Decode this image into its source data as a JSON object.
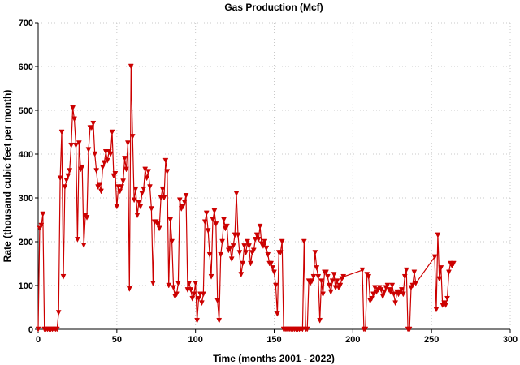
{
  "chart_data": {
    "type": "line",
    "title": "Gas Production (Mcf)",
    "xlabel": "Time (months 2001 - 2022)",
    "ylabel": "Rate (thousand cubic feet per month)",
    "xlim": [
      0,
      300
    ],
    "ylim": [
      0,
      700
    ],
    "xticks": [
      0,
      50,
      100,
      150,
      200,
      250,
      300
    ],
    "yticks": [
      0,
      100,
      200,
      300,
      400,
      500,
      600,
      700
    ],
    "grid": true,
    "line_color": "#cc0000",
    "marker": "triangle-down",
    "series": [
      {
        "name": "Gas Production",
        "x": [
          0,
          1,
          2,
          3,
          4,
          5,
          6,
          7,
          8,
          9,
          10,
          11,
          12,
          13,
          14,
          15,
          16,
          17,
          18,
          19,
          20,
          21,
          22,
          23,
          24,
          25,
          26,
          27,
          28,
          29,
          30,
          31,
          32,
          33,
          34,
          35,
          36,
          37,
          38,
          39,
          40,
          41,
          42,
          43,
          44,
          45,
          46,
          47,
          48,
          49,
          50,
          51,
          52,
          53,
          54,
          55,
          56,
          57,
          58,
          59,
          60,
          61,
          62,
          63,
          64,
          65,
          66,
          67,
          68,
          69,
          70,
          71,
          72,
          73,
          74,
          75,
          76,
          77,
          78,
          79,
          80,
          81,
          82,
          83,
          84,
          85,
          86,
          87,
          88,
          89,
          90,
          91,
          92,
          93,
          94,
          95,
          96,
          97,
          98,
          99,
          100,
          101,
          102,
          103,
          104,
          105,
          106,
          107,
          108,
          109,
          110,
          111,
          112,
          113,
          114,
          115,
          116,
          117,
          118,
          119,
          120,
          121,
          122,
          123,
          124,
          125,
          126,
          127,
          128,
          129,
          130,
          131,
          132,
          133,
          134,
          135,
          136,
          137,
          138,
          139,
          140,
          141,
          142,
          143,
          144,
          145,
          146,
          147,
          148,
          149,
          150,
          151,
          152,
          153,
          154,
          155,
          156,
          157,
          158,
          159,
          160,
          161,
          162,
          163,
          164,
          165,
          166,
          167,
          168,
          169,
          170,
          171,
          172,
          173,
          174,
          175,
          176,
          177,
          178,
          179,
          180,
          181,
          182,
          183,
          184,
          185,
          186,
          187,
          188,
          189,
          190,
          191,
          192,
          193,
          194,
          206,
          207,
          208,
          209,
          210,
          211,
          212,
          213,
          214,
          215,
          216,
          217,
          218,
          219,
          220,
          221,
          222,
          223,
          224,
          225,
          226,
          227,
          228,
          229,
          230,
          231,
          232,
          233,
          234,
          235,
          236,
          237,
          238,
          239,
          240,
          252,
          253,
          254,
          255,
          256,
          257,
          258,
          259,
          260,
          261,
          262,
          263,
          264
        ],
        "values": [
          0,
          230,
          237,
          263,
          0,
          0,
          0,
          0,
          0,
          0,
          0,
          0,
          0,
          38,
          345,
          450,
          120,
          325,
          340,
          350,
          362,
          420,
          505,
          480,
          420,
          205,
          425,
          365,
          370,
          192,
          260,
          255,
          410,
          460,
          460,
          470,
          400,
          362,
          325,
          330,
          315,
          370,
          380,
          405,
          385,
          405,
          400,
          450,
          350,
          355,
          280,
          325,
          315,
          325,
          338,
          390,
          365,
          425,
          92,
          600,
          440,
          295,
          320,
          260,
          290,
          280,
          310,
          320,
          365,
          345,
          360,
          325,
          275,
          105,
          245,
          245,
          240,
          230,
          300,
          320,
          300,
          385,
          360,
          100,
          250,
          200,
          95,
          75,
          80,
          105,
          295,
          275,
          280,
          290,
          305,
          90,
          105,
          90,
          70,
          80,
          105,
          20,
          70,
          80,
          60,
          80,
          245,
          265,
          225,
          170,
          120,
          250,
          270,
          240,
          65,
          20,
          170,
          200,
          250,
          230,
          235,
          180,
          185,
          160,
          190,
          215,
          310,
          215,
          175,
          125,
          150,
          190,
          175,
          200,
          190,
          150,
          175,
          180,
          205,
          215,
          205,
          235,
          195,
          190,
          200,
          185,
          170,
          150,
          150,
          140,
          130,
          100,
          35,
          175,
          175,
          200,
          0,
          0,
          0,
          0,
          0,
          0,
          0,
          0,
          0,
          0,
          0,
          0,
          0,
          200,
          0,
          0,
          110,
          105,
          110,
          120,
          175,
          140,
          120,
          20,
          110,
          80,
          130,
          130,
          120,
          100,
          85,
          110,
          125,
          95,
          110,
          95,
          100,
          115,
          120,
          135,
          0,
          0,
          125,
          120,
          65,
          70,
          80,
          95,
          85,
          90,
          95,
          90,
          75,
          85,
          95,
          100,
          90,
          85,
          100,
          80,
          60,
          85,
          80,
          85,
          90,
          80,
          120,
          135,
          0,
          0,
          95,
          100,
          130,
          105,
          165,
          45,
          215,
          115,
          140,
          55,
          60,
          55,
          70,
          130,
          150,
          145,
          150
        ]
      }
    ]
  }
}
